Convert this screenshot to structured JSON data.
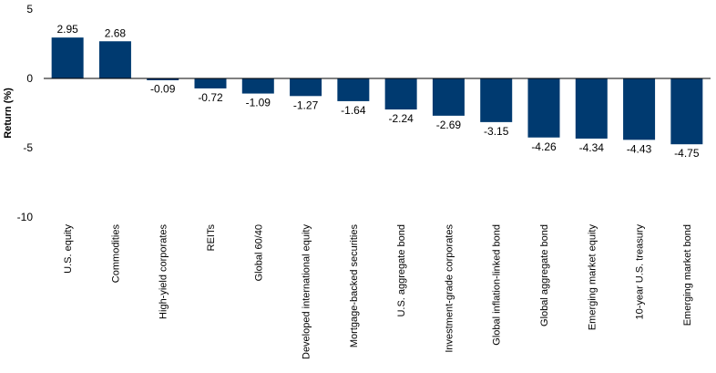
{
  "chart_data": {
    "type": "bar",
    "title": "",
    "xlabel": "",
    "ylabel": "Return (%)",
    "ylim": [
      -10,
      5
    ],
    "yticks": [
      5,
      0,
      -5,
      -10
    ],
    "grid": false,
    "bar_color": "#003a70",
    "categories": [
      "U.S. equity",
      "Commodities",
      "High-yield corporates",
      "REITs",
      "Global 60/40",
      "Developed international equity",
      "Mortgage-backed securities",
      "U.S. aggregate bond",
      "Investment-grade corporates",
      "Global inflation-linked bond",
      "Global aggregate bond",
      "Emerging market equity",
      "10-year U.S. treasury",
      "Emerging market bond"
    ],
    "values": [
      2.95,
      2.68,
      -0.09,
      -0.72,
      -1.09,
      -1.27,
      -1.64,
      -2.24,
      -2.69,
      -3.15,
      -4.26,
      -4.34,
      -4.43,
      -4.75
    ],
    "labels": [
      "2.95",
      "2.68",
      "-0.09",
      "-0.72",
      "-1.09",
      "-1.27",
      "-1.64",
      "-2.24",
      "-2.69",
      "-3.15",
      "-4.26",
      "-4.34",
      "-4.43",
      "-4.75"
    ]
  }
}
